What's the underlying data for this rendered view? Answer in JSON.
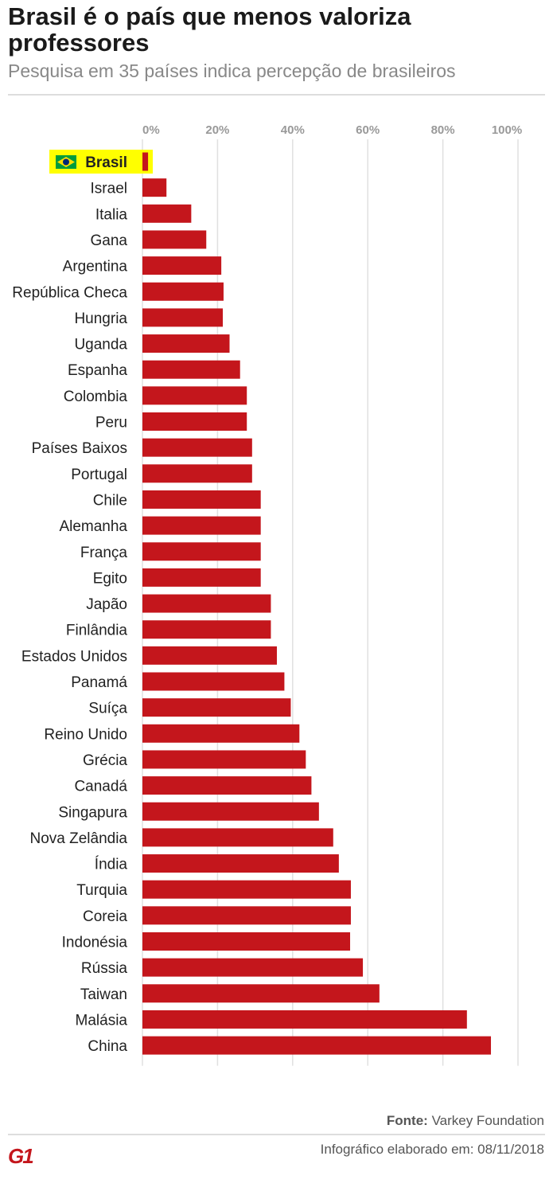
{
  "header": {
    "title": "Brasil é o país que menos valoriza professores",
    "subtitle": "Pesquisa em 35 países indica percepção de brasileiros"
  },
  "footer": {
    "source_label": "Fonte:",
    "source": "Varkey Foundation",
    "date_text": "Infográfico elaborado em: 08/11/2018",
    "logo": "G1"
  },
  "colors": {
    "bar": "#c4161c",
    "highlight": "#ffff00",
    "grid": "#e0e0e0"
  },
  "chart_data": {
    "type": "bar",
    "orientation": "horizontal",
    "xlim": [
      0,
      100
    ],
    "ticks": [
      "0%",
      "20%",
      "40%",
      "60%",
      "80%",
      "100%"
    ],
    "tick_values": [
      0,
      20,
      40,
      60,
      80,
      100
    ],
    "grid": true,
    "highlight": "Brasil",
    "highlight_icon": "brazil-flag-icon",
    "categories": [
      "Brasil",
      "Israel",
      "Italia",
      "Gana",
      "Argentina",
      "República Checa",
      "Hungria",
      "Uganda",
      "Espanha",
      "Colombia",
      "Peru",
      "Países Baixos",
      "Portugal",
      "Chile",
      "Alemanha",
      "França",
      "Egito",
      "Japão",
      "Finlândia",
      "Estados Unidos",
      "Panamá",
      "Suíça",
      "Reino Unido",
      "Grécia",
      "Canadá",
      "Singapura",
      "Nova Zelândia",
      "Índia",
      "Turquia",
      "Coreia",
      "Indonésia",
      "Rússia",
      "Taiwan",
      "Malásia",
      "China"
    ],
    "values": [
      1.5,
      6.4,
      13,
      17,
      21,
      21.6,
      21.4,
      23.2,
      26,
      27.8,
      27.8,
      29.2,
      29.2,
      31.5,
      31.5,
      31.5,
      31.5,
      34.2,
      34.2,
      35.8,
      37.8,
      39.5,
      41.8,
      43.5,
      45,
      47,
      50.8,
      52.3,
      55.5,
      55.5,
      55.3,
      58.7,
      63.1,
      86.4,
      92.8
    ]
  }
}
